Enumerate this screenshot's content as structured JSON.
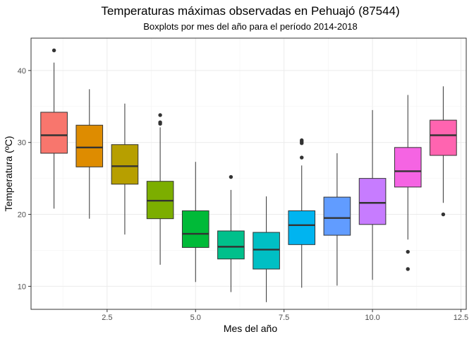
{
  "chart_data": {
    "type": "boxplot",
    "title": "Temperaturas máximas observadas en Pehuajó (87544)",
    "subtitle": "Boxplots por mes del año para el período 2014-2018",
    "xlabel": "Mes del año",
    "ylabel": "Temperatura (ºC)",
    "xlim": [
      0.35,
      12.65
    ],
    "ylim": [
      6.8,
      44.5
    ],
    "x_ticks": [
      2.5,
      5.0,
      7.5,
      10.0,
      12.5
    ],
    "x_tick_labels": [
      "2.5",
      "5.0",
      "7.5",
      "10.0",
      "12.5"
    ],
    "y_ticks": [
      10,
      20,
      30,
      40
    ],
    "y_tick_labels": [
      "10",
      "20",
      "30",
      "40"
    ],
    "grid": true,
    "legend": "none",
    "series": [
      {
        "month": 1,
        "color": "#F8766D",
        "whisker_low": 20.8,
        "q1": 28.5,
        "median": 31.0,
        "q3": 34.2,
        "whisker_high": 41.1,
        "outliers": [
          42.8
        ]
      },
      {
        "month": 2,
        "color": "#DE8C00",
        "whisker_low": 19.4,
        "q1": 26.6,
        "median": 29.3,
        "q3": 32.4,
        "whisker_high": 37.4,
        "outliers": []
      },
      {
        "month": 3,
        "color": "#B79F00",
        "whisker_low": 17.2,
        "q1": 24.2,
        "median": 26.7,
        "q3": 29.7,
        "whisker_high": 35.4,
        "outliers": []
      },
      {
        "month": 4,
        "color": "#7CAE00",
        "whisker_low": 13.0,
        "q1": 19.4,
        "median": 21.9,
        "q3": 24.6,
        "whisker_high": 32.1,
        "outliers": [
          32.6,
          32.8,
          33.8
        ]
      },
      {
        "month": 5,
        "color": "#00BA38",
        "whisker_low": 10.6,
        "q1": 15.4,
        "median": 17.3,
        "q3": 20.5,
        "whisker_high": 27.3,
        "outliers": []
      },
      {
        "month": 6,
        "color": "#00C08B",
        "whisker_low": 9.2,
        "q1": 13.8,
        "median": 15.5,
        "q3": 17.7,
        "whisker_high": 23.4,
        "outliers": [
          25.2
        ]
      },
      {
        "month": 7,
        "color": "#00BFC4",
        "whisker_low": 7.8,
        "q1": 12.4,
        "median": 15.1,
        "q3": 17.5,
        "whisker_high": 22.5,
        "outliers": []
      },
      {
        "month": 8,
        "color": "#00B4F0",
        "whisker_low": 9.8,
        "q1": 15.8,
        "median": 18.5,
        "q3": 20.5,
        "whisker_high": 26.8,
        "outliers": [
          27.9,
          29.9,
          30.1,
          30.3
        ]
      },
      {
        "month": 9,
        "color": "#619CFF",
        "whisker_low": 10.1,
        "q1": 17.1,
        "median": 19.5,
        "q3": 22.4,
        "whisker_high": 28.5,
        "outliers": []
      },
      {
        "month": 10,
        "color": "#C77CFF",
        "whisker_low": 10.9,
        "q1": 18.6,
        "median": 21.6,
        "q3": 25.0,
        "whisker_high": 34.5,
        "outliers": []
      },
      {
        "month": 11,
        "color": "#F564E3",
        "whisker_low": 16.5,
        "q1": 23.8,
        "median": 26.0,
        "q3": 29.3,
        "whisker_high": 36.6,
        "outliers": [
          14.8,
          12.4
        ]
      },
      {
        "month": 12,
        "color": "#FF64B0",
        "whisker_low": 21.6,
        "q1": 28.2,
        "median": 31.0,
        "q3": 33.1,
        "whisker_high": 37.8,
        "outliers": [
          20.0
        ]
      }
    ]
  }
}
